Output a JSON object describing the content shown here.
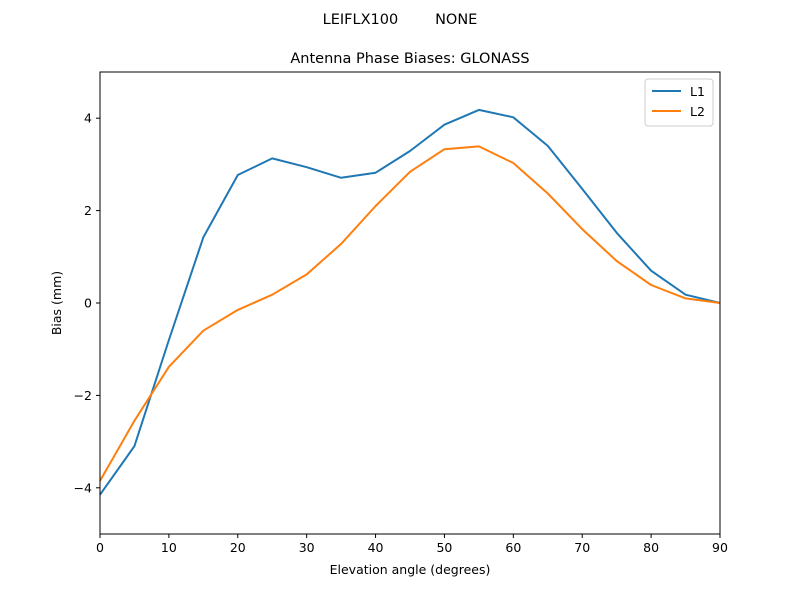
{
  "chart_data": {
    "type": "line",
    "suptitle": "LEIFLX100        NONE",
    "title": "Antenna Phase Biases: GLONASS",
    "xlabel": "Elevation angle (degrees)",
    "ylabel": "Bias (mm)",
    "xlim": [
      0,
      90
    ],
    "ylim": [
      -5,
      5
    ],
    "xticks": [
      0,
      10,
      20,
      30,
      40,
      50,
      60,
      70,
      80,
      90
    ],
    "yticks": [
      -4,
      -2,
      0,
      2,
      4
    ],
    "grid": false,
    "legend_position": "top-right",
    "x": [
      0,
      5,
      10,
      15,
      20,
      25,
      30,
      35,
      40,
      45,
      50,
      55,
      60,
      65,
      70,
      75,
      80,
      85,
      90
    ],
    "series": [
      {
        "name": "L1",
        "color": "#1f77b4",
        "values": [
          -4.15,
          -3.1,
          -0.8,
          1.42,
          2.77,
          3.13,
          2.94,
          2.71,
          2.82,
          3.29,
          3.86,
          4.18,
          4.02,
          3.4,
          2.47,
          1.52,
          0.7,
          0.18,
          0.0
        ]
      },
      {
        "name": "L2",
        "color": "#ff7f0e",
        "values": [
          -3.85,
          -2.55,
          -1.38,
          -0.6,
          -0.15,
          0.18,
          0.62,
          1.28,
          2.1,
          2.84,
          3.33,
          3.39,
          3.03,
          2.37,
          1.6,
          0.91,
          0.39,
          0.1,
          0.0
        ]
      }
    ]
  }
}
